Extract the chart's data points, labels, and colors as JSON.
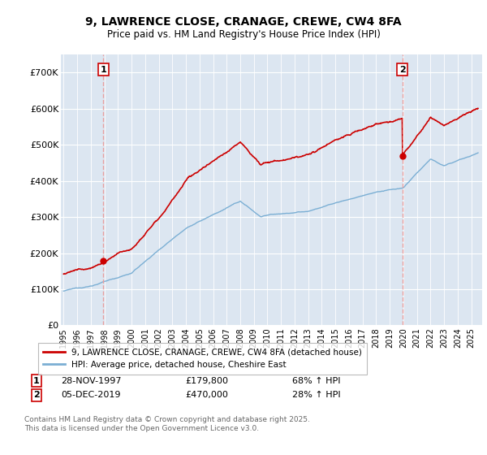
{
  "title": "9, LAWRENCE CLOSE, CRANAGE, CREWE, CW4 8FA",
  "subtitle": "Price paid vs. HM Land Registry's House Price Index (HPI)",
  "ylim": [
    0,
    750000
  ],
  "yticks": [
    0,
    100000,
    200000,
    300000,
    400000,
    500000,
    600000,
    700000
  ],
  "ytick_labels": [
    "£0",
    "£100K",
    "£200K",
    "£300K",
    "£400K",
    "£500K",
    "£600K",
    "£700K"
  ],
  "xlim_start": 1994.8,
  "xlim_end": 2025.8,
  "fig_bg_color": "#ffffff",
  "plot_bg_color": "#dce6f1",
  "grid_color": "#ffffff",
  "red_color": "#cc0000",
  "blue_color": "#7bafd4",
  "vline_color": "#e8a0a0",
  "marker1_x": 1997.92,
  "marker1_y": 179800,
  "marker2_x": 2019.92,
  "marker2_y": 470000,
  "legend_label_red": "9, LAWRENCE CLOSE, CRANAGE, CREWE, CW4 8FA (detached house)",
  "legend_label_blue": "HPI: Average price, detached house, Cheshire East",
  "footer": "Contains HM Land Registry data © Crown copyright and database right 2025.\nThis data is licensed under the Open Government Licence v3.0.",
  "xtick_years": [
    1995,
    1996,
    1997,
    1998,
    1999,
    2000,
    2001,
    2002,
    2003,
    2004,
    2005,
    2006,
    2007,
    2008,
    2009,
    2010,
    2011,
    2012,
    2013,
    2014,
    2015,
    2016,
    2017,
    2018,
    2019,
    2020,
    2021,
    2022,
    2023,
    2024,
    2025
  ]
}
